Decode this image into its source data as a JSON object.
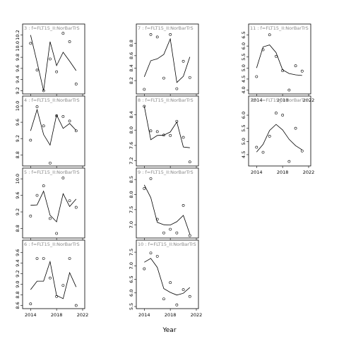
{
  "chart_data": {
    "type": "scatter",
    "xlabel": "Year",
    "ylabel": "",
    "panels": [
      {
        "label": "3 : f=FLT15_II:NorBarTrS",
        "ylim": [
          9.18,
          10.22
        ],
        "yticks": [
          9.2,
          9.4,
          9.6,
          9.8,
          10.0,
          10.2
        ],
        "points": [
          [
            2014,
            10.05
          ],
          [
            2015,
            9.57
          ],
          [
            2016,
            9.2
          ],
          [
            2017,
            9.77
          ],
          [
            2018,
            9.54
          ],
          [
            2019,
            10.23
          ],
          [
            2020,
            10.08
          ],
          [
            2021,
            9.32
          ]
        ],
        "line": [
          [
            2014,
            10.2
          ],
          [
            2015,
            9.71
          ],
          [
            2016,
            9.2
          ],
          [
            2017,
            10.08
          ],
          [
            2018,
            9.65
          ],
          [
            2019,
            9.89
          ],
          [
            2020,
            9.73
          ],
          [
            2021,
            9.56
          ]
        ]
      },
      {
        "label": "7 : f=FLT15_II:NorBarTrS",
        "ylim": [
          8.02,
          8.95
        ],
        "yticks": [
          8.2,
          8.4,
          8.6,
          8.8
        ],
        "points": [
          [
            2014,
            8.06
          ],
          [
            2015,
            8.94
          ],
          [
            2016,
            8.9
          ],
          [
            2017,
            8.24
          ],
          [
            2018,
            8.94
          ],
          [
            2019,
            8.07
          ],
          [
            2020,
            8.51
          ],
          [
            2021,
            8.25
          ]
        ],
        "line": [
          [
            2014,
            8.26
          ],
          [
            2015,
            8.52
          ],
          [
            2016,
            8.55
          ],
          [
            2017,
            8.62
          ],
          [
            2018,
            8.87
          ],
          [
            2019,
            8.17
          ],
          [
            2020,
            8.27
          ],
          [
            2021,
            8.58
          ]
        ]
      },
      {
        "label": "11 : f=FLT15_II:NorBarTrS",
        "ylim": [
          3.92,
          6.55
        ],
        "yticks": [
          4.0,
          4.5,
          5.0,
          5.5,
          6.0,
          6.5
        ],
        "points": [
          [
            2014,
            4.61
          ],
          [
            2015,
            5.83
          ],
          [
            2016,
            6.51
          ],
          [
            2017,
            5.53
          ],
          [
            2018,
            4.88
          ],
          [
            2019,
            4.0
          ],
          [
            2020,
            5.1
          ],
          [
            2021,
            4.86
          ]
        ],
        "line": [
          [
            2014,
            5.0
          ],
          [
            2015,
            5.96
          ],
          [
            2016,
            6.05
          ],
          [
            2017,
            5.7
          ],
          [
            2018,
            4.92
          ],
          [
            2019,
            4.75
          ],
          [
            2020,
            4.69
          ],
          [
            2021,
            4.66
          ]
        ]
      },
      {
        "label": "4 : f=FLT15_II:NorBarTrS",
        "ylim": [
          8.58,
          10.0
        ],
        "yticks": [
          8.8,
          9.2,
          9.6,
          10.0
        ],
        "points": [
          [
            2014,
            9.16
          ],
          [
            2015,
            9.98
          ],
          [
            2016,
            9.51
          ],
          [
            2017,
            8.6
          ],
          [
            2018,
            9.76
          ],
          [
            2019,
            9.74
          ],
          [
            2020,
            9.63
          ],
          [
            2021,
            9.39
          ]
        ],
        "line": [
          [
            2014,
            9.39
          ],
          [
            2015,
            9.91
          ],
          [
            2016,
            9.3
          ],
          [
            2017,
            9.04
          ],
          [
            2018,
            9.78
          ],
          [
            2019,
            9.45
          ],
          [
            2020,
            9.57
          ],
          [
            2021,
            9.4
          ]
        ]
      },
      {
        "label": "8 : f=FLT15_II:NorBarTrS",
        "ylim": [
          7.12,
          8.63
        ],
        "yticks": [
          7.2,
          7.6,
          8.0,
          8.4
        ],
        "points": [
          [
            2014,
            8.62
          ],
          [
            2015,
            7.98
          ],
          [
            2016,
            7.96
          ],
          [
            2017,
            7.87
          ],
          [
            2018,
            7.86
          ],
          [
            2019,
            8.23
          ],
          [
            2020,
            7.81
          ],
          [
            2021,
            7.17
          ]
        ],
        "line": [
          [
            2014,
            8.62
          ],
          [
            2015,
            7.75
          ],
          [
            2016,
            7.86
          ],
          [
            2017,
            7.87
          ],
          [
            2018,
            7.95
          ],
          [
            2019,
            8.21
          ],
          [
            2020,
            7.56
          ],
          [
            2021,
            7.54
          ]
        ]
      },
      {
        "label": "12 : f=FLT15_II:NorBarTrS",
        "ylim": [
          4.15,
          6.35
        ],
        "yticks": [
          4.5,
          5.0,
          5.5,
          6.0
        ],
        "points": [
          [
            2014,
            4.78
          ],
          [
            2015,
            4.59
          ],
          [
            2016,
            5.2
          ],
          [
            2017,
            6.08
          ],
          [
            2018,
            6.0
          ],
          [
            2019,
            4.24
          ],
          [
            2020,
            5.5
          ],
          [
            2021,
            4.64
          ]
        ],
        "line": [
          [
            2014,
            4.6
          ],
          [
            2015,
            4.89
          ],
          [
            2016,
            5.42
          ],
          [
            2017,
            5.65
          ],
          [
            2018,
            5.44
          ],
          [
            2019,
            5.08
          ],
          [
            2020,
            4.84
          ],
          [
            2021,
            4.68
          ]
        ]
      },
      {
        "label": "5 : f=FLT15_II:NorBarTrS",
        "ylim": [
          8.62,
          10.02
        ],
        "yticks": [
          8.8,
          9.2,
          9.6,
          10.0
        ],
        "points": [
          [
            2014,
            9.1
          ],
          [
            2015,
            9.6
          ],
          [
            2016,
            9.83
          ],
          [
            2017,
            9.04
          ],
          [
            2018,
            8.68
          ],
          [
            2019,
            10.02
          ],
          [
            2020,
            9.47
          ],
          [
            2021,
            9.31
          ]
        ],
        "line": [
          [
            2014,
            9.36
          ],
          [
            2015,
            9.37
          ],
          [
            2016,
            9.7
          ],
          [
            2017,
            9.12
          ],
          [
            2018,
            8.96
          ],
          [
            2019,
            9.64
          ],
          [
            2020,
            9.33
          ],
          [
            2021,
            9.51
          ]
        ]
      },
      {
        "label": "9 : f=FLT15_II:NorBarTrS",
        "ylim": [
          6.63,
          8.55
        ],
        "yticks": [
          7.0,
          7.5,
          8.0,
          8.5
        ],
        "points": [
          [
            2014,
            8.2
          ],
          [
            2015,
            8.53
          ],
          [
            2016,
            7.18
          ],
          [
            2017,
            6.73
          ],
          [
            2018,
            6.85
          ],
          [
            2019,
            6.73
          ],
          [
            2020,
            7.64
          ],
          [
            2021,
            6.64
          ]
        ],
        "line": [
          [
            2014,
            8.32
          ],
          [
            2015,
            7.9
          ],
          [
            2016,
            7.08
          ],
          [
            2017,
            7.0
          ],
          [
            2018,
            6.99
          ],
          [
            2019,
            7.1
          ],
          [
            2020,
            7.31
          ],
          [
            2021,
            6.69
          ]
        ]
      },
      {
        "label": "6 : f=FLT15_II:NorBarTrS",
        "ylim": [
          8.58,
          9.65
        ],
        "yticks": [
          8.6,
          8.8,
          9.0,
          9.2,
          9.4,
          9.6
        ],
        "points": [
          [
            2014,
            8.63
          ],
          [
            2015,
            9.49
          ],
          [
            2016,
            9.49
          ],
          [
            2017,
            9.12
          ],
          [
            2018,
            8.77
          ],
          [
            2019,
            8.98
          ],
          [
            2020,
            9.49
          ],
          [
            2021,
            8.6
          ]
        ],
        "line": [
          [
            2014,
            8.9
          ],
          [
            2015,
            9.06
          ],
          [
            2016,
            9.06
          ],
          [
            2017,
            9.43
          ],
          [
            2018,
            8.79
          ],
          [
            2019,
            8.73
          ],
          [
            2020,
            9.22
          ],
          [
            2021,
            8.95
          ]
        ]
      },
      {
        "label": "10 : f=FLT15_II:NorBarTrS",
        "ylim": [
          5.5,
          7.58
        ],
        "yticks": [
          5.5,
          6.0,
          6.5,
          7.0,
          7.5
        ],
        "points": [
          [
            2014,
            6.89
          ],
          [
            2015,
            7.47
          ],
          [
            2016,
            7.35
          ],
          [
            2017,
            5.78
          ],
          [
            2018,
            6.38
          ],
          [
            2019,
            5.56
          ],
          [
            2020,
            6.12
          ],
          [
            2021,
            5.87
          ]
        ],
        "line": [
          [
            2014,
            7.13
          ],
          [
            2015,
            7.27
          ],
          [
            2016,
            6.94
          ],
          [
            2017,
            6.16
          ],
          [
            2018,
            6.02
          ],
          [
            2019,
            5.92
          ],
          [
            2020,
            5.99
          ],
          [
            2021,
            6.2
          ]
        ]
      }
    ],
    "xlim": [
      2013.1,
      2022.0
    ],
    "xticks": [
      2014,
      2018,
      2022
    ]
  }
}
